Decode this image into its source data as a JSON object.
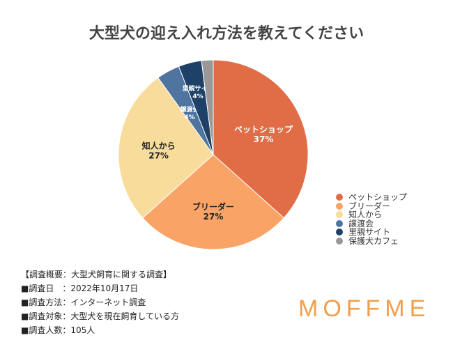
{
  "chart_data": {
    "type": "pie",
    "title": "大型犬の迎え入れ方法を教えてください",
    "start": "top",
    "direction": "clockwise",
    "slices": [
      {
        "label": "ペットショップ",
        "value": 37,
        "display": "37%",
        "color": "#e06d46"
      },
      {
        "label": "ブリーダー",
        "value": 27,
        "display": "27%",
        "color": "#f9a466"
      },
      {
        "label": "知人から",
        "value": 27,
        "display": "27%",
        "color": "#f7dc9c"
      },
      {
        "label": "譲渡会",
        "value": 4,
        "display": "4%",
        "color": "#4f74a0"
      },
      {
        "label": "里親サイト",
        "value": 4,
        "display": "4%",
        "color": "#1f4168"
      },
      {
        "label": "保護犬カフェ",
        "value": 2,
        "display": "",
        "color": "#999999"
      }
    ],
    "legend_position": "right"
  },
  "notes": [
    "【調査概要：大型犬飼育に関する調査】",
    "■調査日　：2022年10月17日",
    "■調査方法：インターネット調査",
    "■調査対象：大型犬を現在飼育している方",
    "■調査人数：105人"
  ],
  "logo": "MOFFME"
}
